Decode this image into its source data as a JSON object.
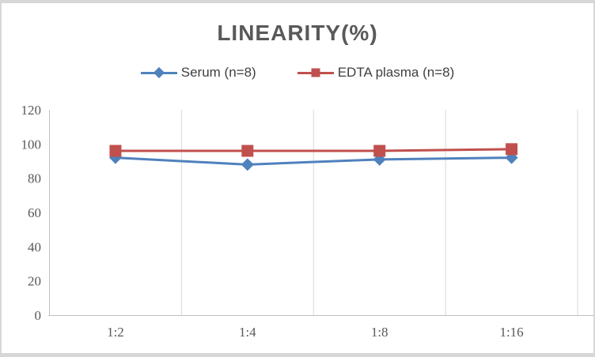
{
  "chart_data": {
    "type": "line",
    "title": "LINEARITY(%)",
    "categories": [
      "1:2",
      "1:4",
      "1:8",
      "1:16"
    ],
    "series": [
      {
        "name": "Serum (n=8)",
        "values": [
          92,
          88,
          91,
          92
        ],
        "color": "#4F81BD",
        "marker": "diamond"
      },
      {
        "name": "EDTA plasma (n=8)",
        "values": [
          96,
          96,
          96,
          97
        ],
        "color": "#C0504D",
        "marker": "square"
      }
    ],
    "xlabel": "",
    "ylabel": "",
    "ylim": [
      0,
      120
    ],
    "ytick_step": 20,
    "ytick_labels": [
      "0",
      "20",
      "40",
      "60",
      "80",
      "100",
      "120"
    ],
    "legend_position": "top-center",
    "grid": "vertical-only",
    "theme": {
      "title_color": "#595959",
      "tick_label_color": "#595959",
      "legend_text_color": "#3f3f3f",
      "axis_line_color": "#bfbfbf",
      "gridline_color": "#d9d9d9",
      "frame_border_color": "#d7d7d7",
      "background_color": "#ffffff"
    }
  }
}
